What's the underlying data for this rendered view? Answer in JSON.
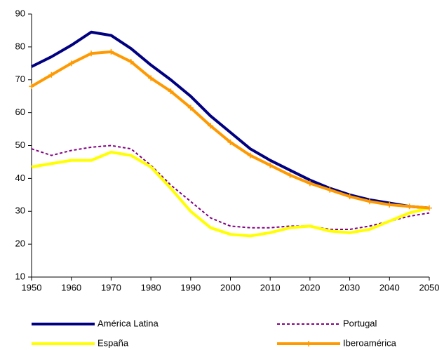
{
  "chart_data": {
    "type": "line",
    "x": [
      1950,
      1955,
      1960,
      1965,
      1970,
      1975,
      1980,
      1985,
      1990,
      1995,
      2000,
      2005,
      2010,
      2015,
      2020,
      2025,
      2030,
      2035,
      2040,
      2045,
      2050
    ],
    "xlim": [
      1950,
      2050
    ],
    "xticks": [
      1950,
      1960,
      1970,
      1980,
      1990,
      2000,
      2010,
      2020,
      2030,
      2040,
      2050
    ],
    "ylim": [
      10,
      90
    ],
    "yticks": [
      10,
      20,
      30,
      40,
      50,
      60,
      70,
      80,
      90
    ],
    "grid": false,
    "legend": "bottom",
    "series": [
      {
        "name": "América Latina",
        "color": "#000080",
        "values": [
          74,
          77,
          80.5,
          84.5,
          83.5,
          79.5,
          74.5,
          70,
          65,
          59,
          54,
          49,
          45.5,
          42.5,
          39.5,
          37,
          35,
          33.5,
          32.5,
          31.5,
          31
        ]
      },
      {
        "name": "Portugal",
        "color": "#800080",
        "line_style": "dashed",
        "values": [
          49,
          47,
          48.5,
          49.5,
          50,
          49,
          44,
          38,
          33,
          28,
          25.5,
          25,
          25,
          25.5,
          25.5,
          24.5,
          24.5,
          25.5,
          27,
          28.5,
          29.5
        ]
      },
      {
        "name": "España",
        "color": "#ffff00",
        "values": [
          43.5,
          44.5,
          45.5,
          45.5,
          48,
          47,
          43.5,
          37,
          30,
          25,
          23,
          22.5,
          23.5,
          25,
          25.5,
          24,
          23.5,
          24.5,
          27,
          29.5,
          31
        ]
      },
      {
        "name": "Iberoamérica",
        "color": "#ff9900",
        "marker": "+",
        "values": [
          68,
          71.5,
          75,
          78,
          78.5,
          75.5,
          70.5,
          66.5,
          61.5,
          56,
          51,
          47,
          44,
          41,
          38.5,
          36.5,
          34.5,
          33,
          32,
          31.5,
          31
        ]
      }
    ]
  }
}
